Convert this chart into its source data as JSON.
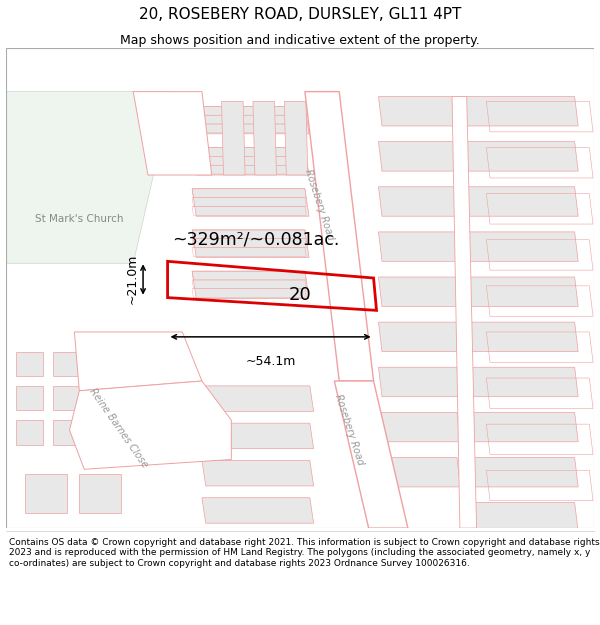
{
  "title": "20, ROSEBERY ROAD, DURSLEY, GL11 4PT",
  "subtitle": "Map shows position and indicative extent of the property.",
  "footer": "Contains OS data © Crown copyright and database right 2021. This information is subject to Crown copyright and database rights 2023 and is reproduced with the permission of HM Land Registry. The polygons (including the associated geometry, namely x, y co-ordinates) are subject to Crown copyright and database rights 2023 Ordnance Survey 100026316.",
  "map_bg": "#ffffff",
  "road_edge": "#f0a0a0",
  "road_fill": "#ffffff",
  "building_fill": "#e8e8e8",
  "building_edge": "#f0a0a0",
  "green_fill": "#eef4ee",
  "green_edge": "#c8d8c8",
  "highlight_color": "#dd0000",
  "dim_color": "#000000",
  "text_color": "#000000",
  "label_color": "#aaaaaa",
  "area_label": "~329m²/~0.081ac.",
  "number_label": "20",
  "dim_width": "~54.1m",
  "dim_height": "~21.0m",
  "road_label": "Rosebery Road",
  "church_label": "St Mark's Church",
  "street_label": "Reine Barnes Close",
  "title_fontsize": 11,
  "subtitle_fontsize": 9,
  "footer_fontsize": 6.5
}
